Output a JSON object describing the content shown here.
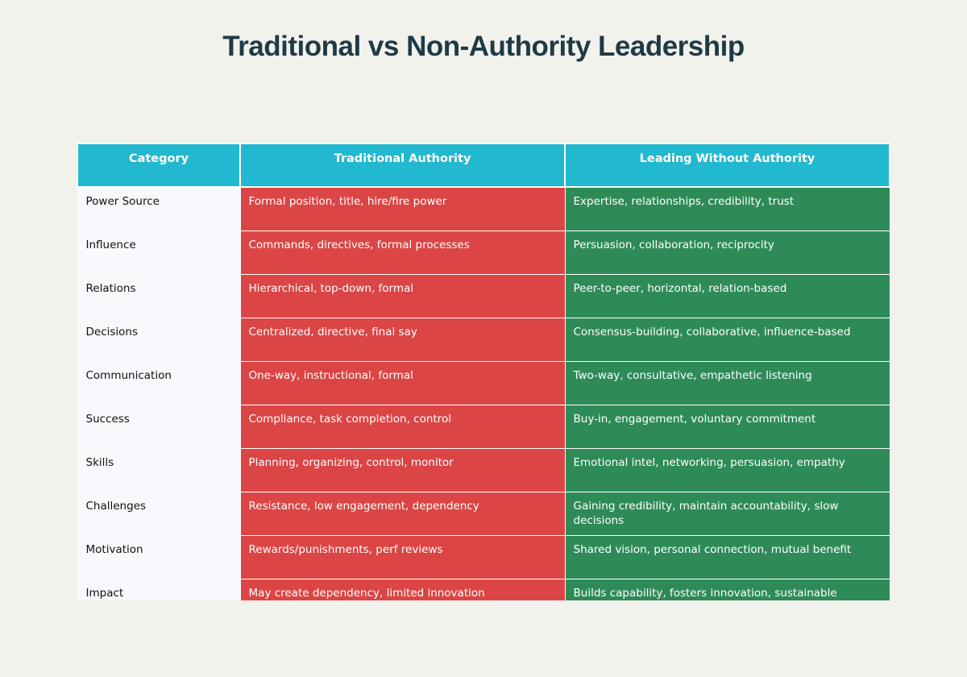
{
  "page": {
    "title": "Traditional vs Non-Authority Leadership"
  },
  "colors": {
    "header": "#22b8cf",
    "traditional": "#db4545",
    "without_authority": "#2e8b57",
    "category_bg": "#f7f9fc",
    "page_bg": "#f2f2ed",
    "title": "#1e3a45"
  },
  "chart_data": {
    "type": "table",
    "title": "Traditional vs Non-Authority Leadership",
    "columns": [
      "Category",
      "Traditional Authority",
      "Leading Without Authority"
    ],
    "rows": [
      [
        "Power Source",
        "Formal position, title, hire/fire power",
        "Expertise, relationships, credibility, trust"
      ],
      [
        "Influence",
        "Commands, directives, formal processes",
        "Persuasion, collaboration, reciprocity"
      ],
      [
        "Relations",
        "Hierarchical, top-down, formal",
        "Peer-to-peer, horizontal, relation-based"
      ],
      [
        "Decisions",
        "Centralized, directive, final say",
        "Consensus-building, collaborative, influence-based"
      ],
      [
        "Communication",
        "One-way, instructional, formal",
        "Two-way, consultative, empathetic listening"
      ],
      [
        "Success",
        "Compliance, task completion, control",
        "Buy-in, engagement, voluntary commitment"
      ],
      [
        "Skills",
        "Planning, organizing, control, monitor",
        "Emotional intel, networking, persuasion, empathy"
      ],
      [
        "Challenges",
        "Resistance, low engagement, dependency",
        "Gaining credibility, maintain accountability, slow decisions"
      ],
      [
        "Motivation",
        "Rewards/punishments, perf reviews",
        "Shared vision, personal connection, mutual benefit"
      ],
      [
        "Impact",
        "May create dependency, limited innovation",
        "Builds capability, fosters innovation, sustainable"
      ]
    ]
  }
}
